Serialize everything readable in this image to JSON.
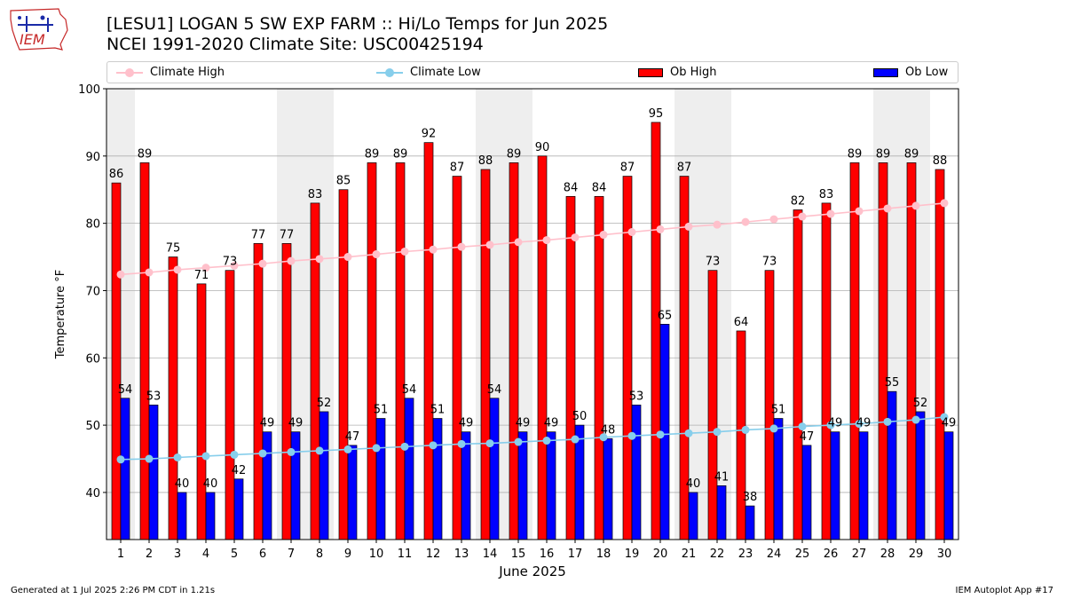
{
  "header": {
    "title_line1": "[LESU1] LOGAN 5 SW EXP FARM :: Hi/Lo Temps for Jun 2025",
    "title_line2": "NCEI 1991-2020 Climate Site: USC00425194",
    "logo_text": "IEM"
  },
  "footer": {
    "generated": "Generated at 1 Jul 2025 2:26 PM CDT in 1.21s",
    "app": "IEM Autoplot App #17"
  },
  "colors": {
    "ob_high": "#ff0000",
    "ob_low": "#0000ff",
    "climate_high": "#ffc0cb",
    "climate_low": "#87ceeb",
    "weekend_band": "#eeeeee",
    "grid": "#b0b0b0"
  },
  "chart_data": {
    "type": "bar",
    "xlabel": "June 2025",
    "ylabel": "Temperature °F",
    "ylim": [
      33,
      100
    ],
    "yticks": [
      40,
      50,
      60,
      70,
      80,
      90,
      100
    ],
    "grid": "horizontal",
    "legend_placement": "top, above plot",
    "categories": [
      "1",
      "2",
      "3",
      "4",
      "5",
      "6",
      "7",
      "8",
      "9",
      "10",
      "11",
      "12",
      "13",
      "14",
      "15",
      "16",
      "17",
      "18",
      "19",
      "20",
      "21",
      "22",
      "23",
      "24",
      "25",
      "26",
      "27",
      "28",
      "29",
      "30"
    ],
    "highlighted_days": [
      1,
      7,
      8,
      14,
      15,
      21,
      22,
      28,
      29
    ],
    "series": [
      {
        "name": "Ob High",
        "kind": "bar",
        "values": [
          86,
          89,
          75,
          71,
          73,
          77,
          77,
          83,
          85,
          89,
          89,
          92,
          87,
          88,
          89,
          90,
          84,
          84,
          87,
          95,
          87,
          73,
          64,
          73,
          82,
          83,
          89,
          89,
          89,
          88
        ]
      },
      {
        "name": "Ob Low",
        "kind": "bar",
        "values": [
          54,
          53,
          40,
          40,
          42,
          49,
          49,
          52,
          47,
          51,
          54,
          51,
          49,
          54,
          49,
          49,
          50,
          48,
          53,
          65,
          40,
          41,
          38,
          51,
          47,
          49,
          49,
          55,
          52,
          49
        ]
      },
      {
        "name": "Climate High",
        "kind": "line",
        "values": [
          72.4,
          72.7,
          73.1,
          73.4,
          73.7,
          74.0,
          74.4,
          74.7,
          75.0,
          75.4,
          75.8,
          76.1,
          76.5,
          76.8,
          77.2,
          77.5,
          77.9,
          78.3,
          78.7,
          79.1,
          79.5,
          79.8,
          80.2,
          80.6,
          81.0,
          81.4,
          81.8,
          82.2,
          82.6,
          83.0
        ]
      },
      {
        "name": "Climate Low",
        "kind": "line",
        "values": [
          44.9,
          45.0,
          45.2,
          45.4,
          45.6,
          45.8,
          46.0,
          46.2,
          46.4,
          46.6,
          46.8,
          47.0,
          47.2,
          47.3,
          47.5,
          47.7,
          47.9,
          48.2,
          48.4,
          48.6,
          48.8,
          49.0,
          49.3,
          49.5,
          49.8,
          50.0,
          50.2,
          50.5,
          50.8,
          51.2
        ]
      }
    ]
  }
}
